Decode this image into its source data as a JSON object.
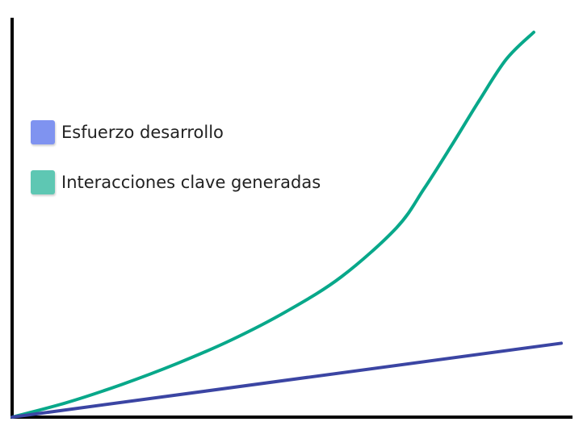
{
  "chart_data": {
    "type": "line",
    "title": "",
    "xlabel": "",
    "ylabel": "",
    "xlim": [
      0,
      10
    ],
    "ylim": [
      0,
      100
    ],
    "grid": false,
    "legend_position": "left",
    "series": [
      {
        "name": "Esfuerzo desarrollo",
        "color": "#3b45a3",
        "swatch_color": "#7f93f0",
        "x": [
          0,
          10
        ],
        "y": [
          0,
          19.2
        ]
      },
      {
        "name": "Interacciones clave generadas",
        "color": "#08a88a",
        "swatch_color": "#5ec7b3",
        "x": [
          0,
          1,
          2,
          3,
          4,
          5,
          6,
          7,
          7.5,
          8,
          8.5,
          9,
          9.5
        ],
        "y": [
          0,
          3.8,
          8.5,
          13.9,
          20.1,
          27.5,
          36.5,
          49.2,
          59.3,
          70.5,
          82.1,
          93.0,
          100
        ]
      }
    ]
  }
}
